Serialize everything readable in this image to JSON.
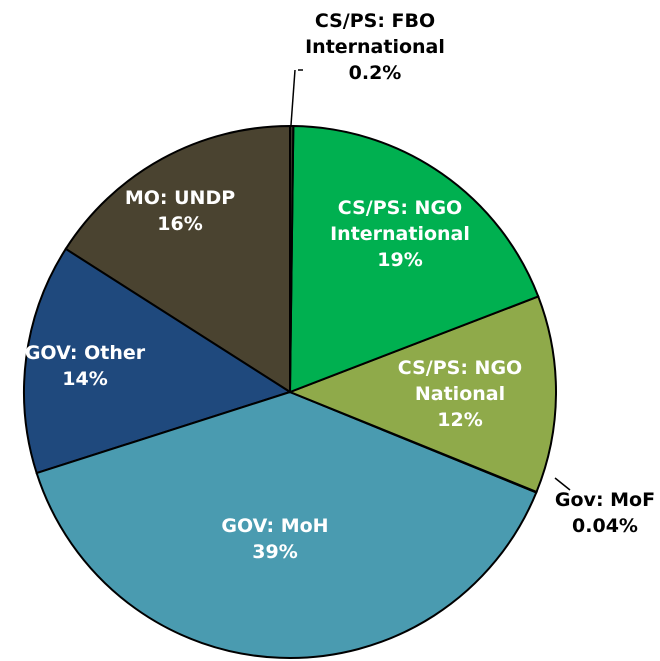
{
  "chart_data": {
    "type": "pie",
    "categories": [
      "CS/PS: FBO International",
      "CS/PS: NGO International",
      "CS/PS: NGO National",
      "Gov: MoF",
      "GOV: MoH",
      "GOV: Other",
      "MO: UNDP"
    ],
    "values": [
      0.2,
      19,
      12,
      0.04,
      39,
      14,
      16
    ],
    "value_labels": [
      "0.2%",
      "19%",
      "12%",
      "0.04%",
      "39%",
      "14%",
      "16%"
    ],
    "colors": [
      "#3a3a2a",
      "#00b050",
      "#8faa4a",
      "#3a3a2a",
      "#4a9bb0",
      "#1f497d",
      "#4a4330"
    ]
  }
}
